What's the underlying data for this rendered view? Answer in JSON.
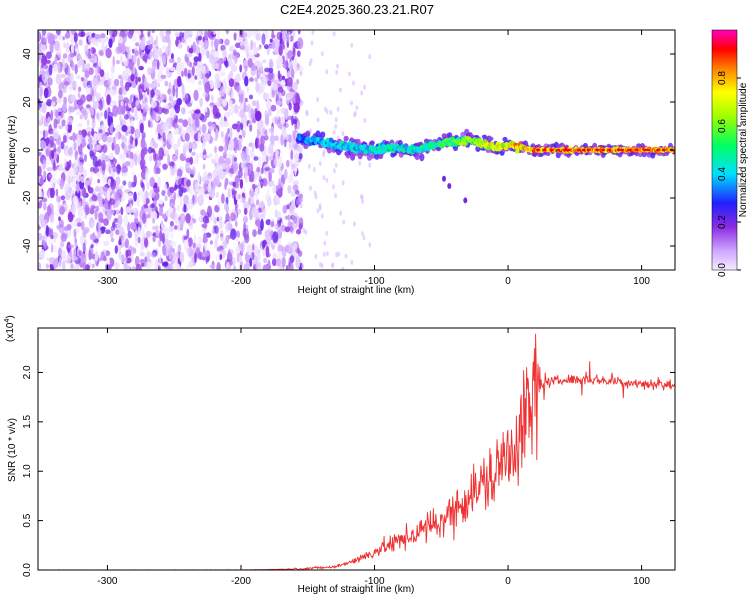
{
  "title": "C2E4.2025.360.23.21.R07",
  "colors": {
    "snr_line": "#f03030",
    "background": "#ffffff",
    "axes": "#000000"
  },
  "chart_data": [
    {
      "type": "heatmap",
      "xlabel": "Height of straight line (km)",
      "ylabel": "Frequency (Hz)",
      "xlim": [
        -352,
        125
      ],
      "ylim": [
        -50,
        50
      ],
      "xticks": [
        -300,
        -200,
        -100,
        0,
        100
      ],
      "yticks": [
        -40,
        -20,
        0,
        20,
        40
      ],
      "colorbar": {
        "label": "Normalized spectral amplitude",
        "range": [
          0,
          1
        ],
        "ticks": [
          0.0,
          0.2,
          0.4,
          0.6,
          0.8
        ],
        "colormap": "rainbow (white-violet-blue-cyan-green-yellow-red-magenta)"
      },
      "noise_region": {
        "x_range": [
          -352,
          -155
        ],
        "note": "scattered low amplitude (0.0-0.2) speckle across all frequencies"
      },
      "signal_track": {
        "x": [
          -157,
          -145,
          -130,
          -115,
          -100,
          -85,
          -70,
          -55,
          -40,
          -30,
          -20,
          -10,
          0,
          10,
          20,
          40,
          60,
          80,
          100,
          125
        ],
        "freq": [
          5,
          4,
          2,
          1,
          0,
          1,
          0,
          2,
          4,
          4,
          3,
          1,
          2,
          1,
          0,
          0,
          0,
          0,
          0,
          0
        ],
        "amplitude": [
          0.35,
          0.4,
          0.45,
          0.45,
          0.5,
          0.5,
          0.5,
          0.55,
          0.6,
          0.7,
          0.75,
          0.8,
          0.8,
          0.85,
          0.9,
          0.9,
          0.9,
          0.9,
          0.9,
          0.9
        ]
      }
    },
    {
      "type": "line",
      "xlabel": "Height of straight line (km)",
      "ylabel": "SNR (10 * v/v)",
      "y_multiplier": "(x10",
      "y_multiplier_exp": "4",
      "y_multiplier_close": ")",
      "xlim": [
        -352,
        125
      ],
      "ylim": [
        0,
        2.45
      ],
      "xticks": [
        -300,
        -200,
        -100,
        0,
        100
      ],
      "yticks": [
        0.0,
        0.5,
        1.0,
        1.5,
        2.0
      ],
      "series": [
        {
          "x": [
            -352,
            -300,
            -250,
            -200,
            -160,
            -130,
            -110,
            -95,
            -80,
            -65,
            -50,
            -40,
            -30,
            -20,
            -10,
            0,
            5,
            10,
            15,
            20,
            25,
            30,
            40,
            50,
            60,
            70,
            80,
            90,
            100,
            110,
            125
          ],
          "values": [
            0.0,
            0.0,
            0.0,
            0.0,
            0.01,
            0.03,
            0.12,
            0.22,
            0.3,
            0.4,
            0.5,
            0.6,
            0.75,
            0.85,
            0.95,
            1.2,
            1.3,
            1.45,
            1.6,
            1.75,
            1.85,
            1.9,
            1.92,
            1.93,
            1.93,
            1.92,
            1.91,
            1.9,
            1.89,
            1.88,
            1.87
          ]
        }
      ]
    }
  ]
}
